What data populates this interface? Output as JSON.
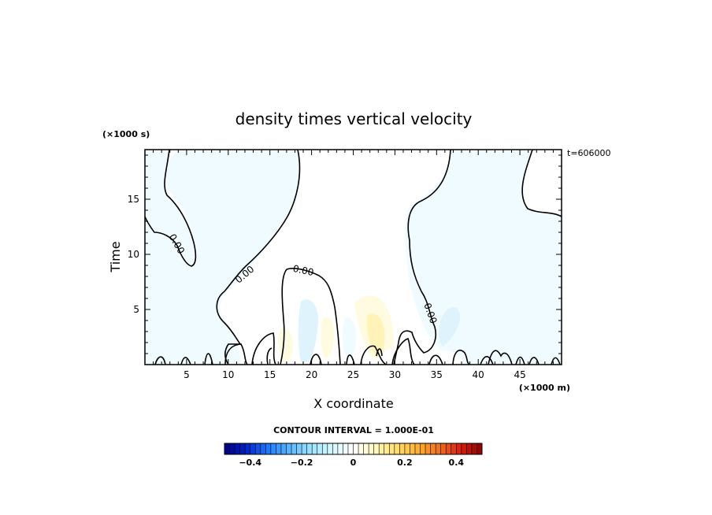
{
  "chart_data": {
    "type": "contour",
    "title": "density times vertical velocity",
    "xlabel": "X coordinate",
    "ylabel": "Time",
    "x_scale_label": "(×1000 m)",
    "y_scale_label": "(×1000 s)",
    "time_stamp": "t=606000",
    "xlim": [
      0,
      50
    ],
    "ylim": [
      0,
      19.5
    ],
    "x_ticks": [
      5,
      10,
      15,
      20,
      25,
      30,
      35,
      40,
      45
    ],
    "x_tick_labels": [
      "5",
      "10",
      "15",
      "20",
      "25",
      "30",
      "35",
      "40",
      "45"
    ],
    "y_ticks": [
      5,
      10,
      15
    ],
    "y_tick_labels": [
      "5",
      "10",
      "15"
    ],
    "contour_interval": "CONTOUR INTERVAL = 1.000E-01",
    "contour_labels": [
      "0.00",
      "0.00",
      "0.00",
      "0.00"
    ],
    "colorbar": {
      "min": -0.5,
      "max": 0.5,
      "tick_values": [
        -0.4,
        -0.2,
        0,
        0.2,
        0.4
      ],
      "tick_labels": [
        "−0.4",
        "−0.2",
        "0",
        "0.2",
        "0.4"
      ],
      "colormap": [
        "#00007f",
        "#0020c8",
        "#1e78ff",
        "#5ab4ff",
        "#9be4ff",
        "#d2f8ff",
        "#ffffff",
        "#fff8c0",
        "#ffe070",
        "#ffb030",
        "#f07020",
        "#d82010",
        "#8c0000"
      ]
    },
    "fill_colors": {
      "negative_weak": "#f0fbff",
      "negative_mid": "#dff3fc",
      "positive_weak": "#fffbe0",
      "positive_mid": "#fff3b8"
    }
  }
}
